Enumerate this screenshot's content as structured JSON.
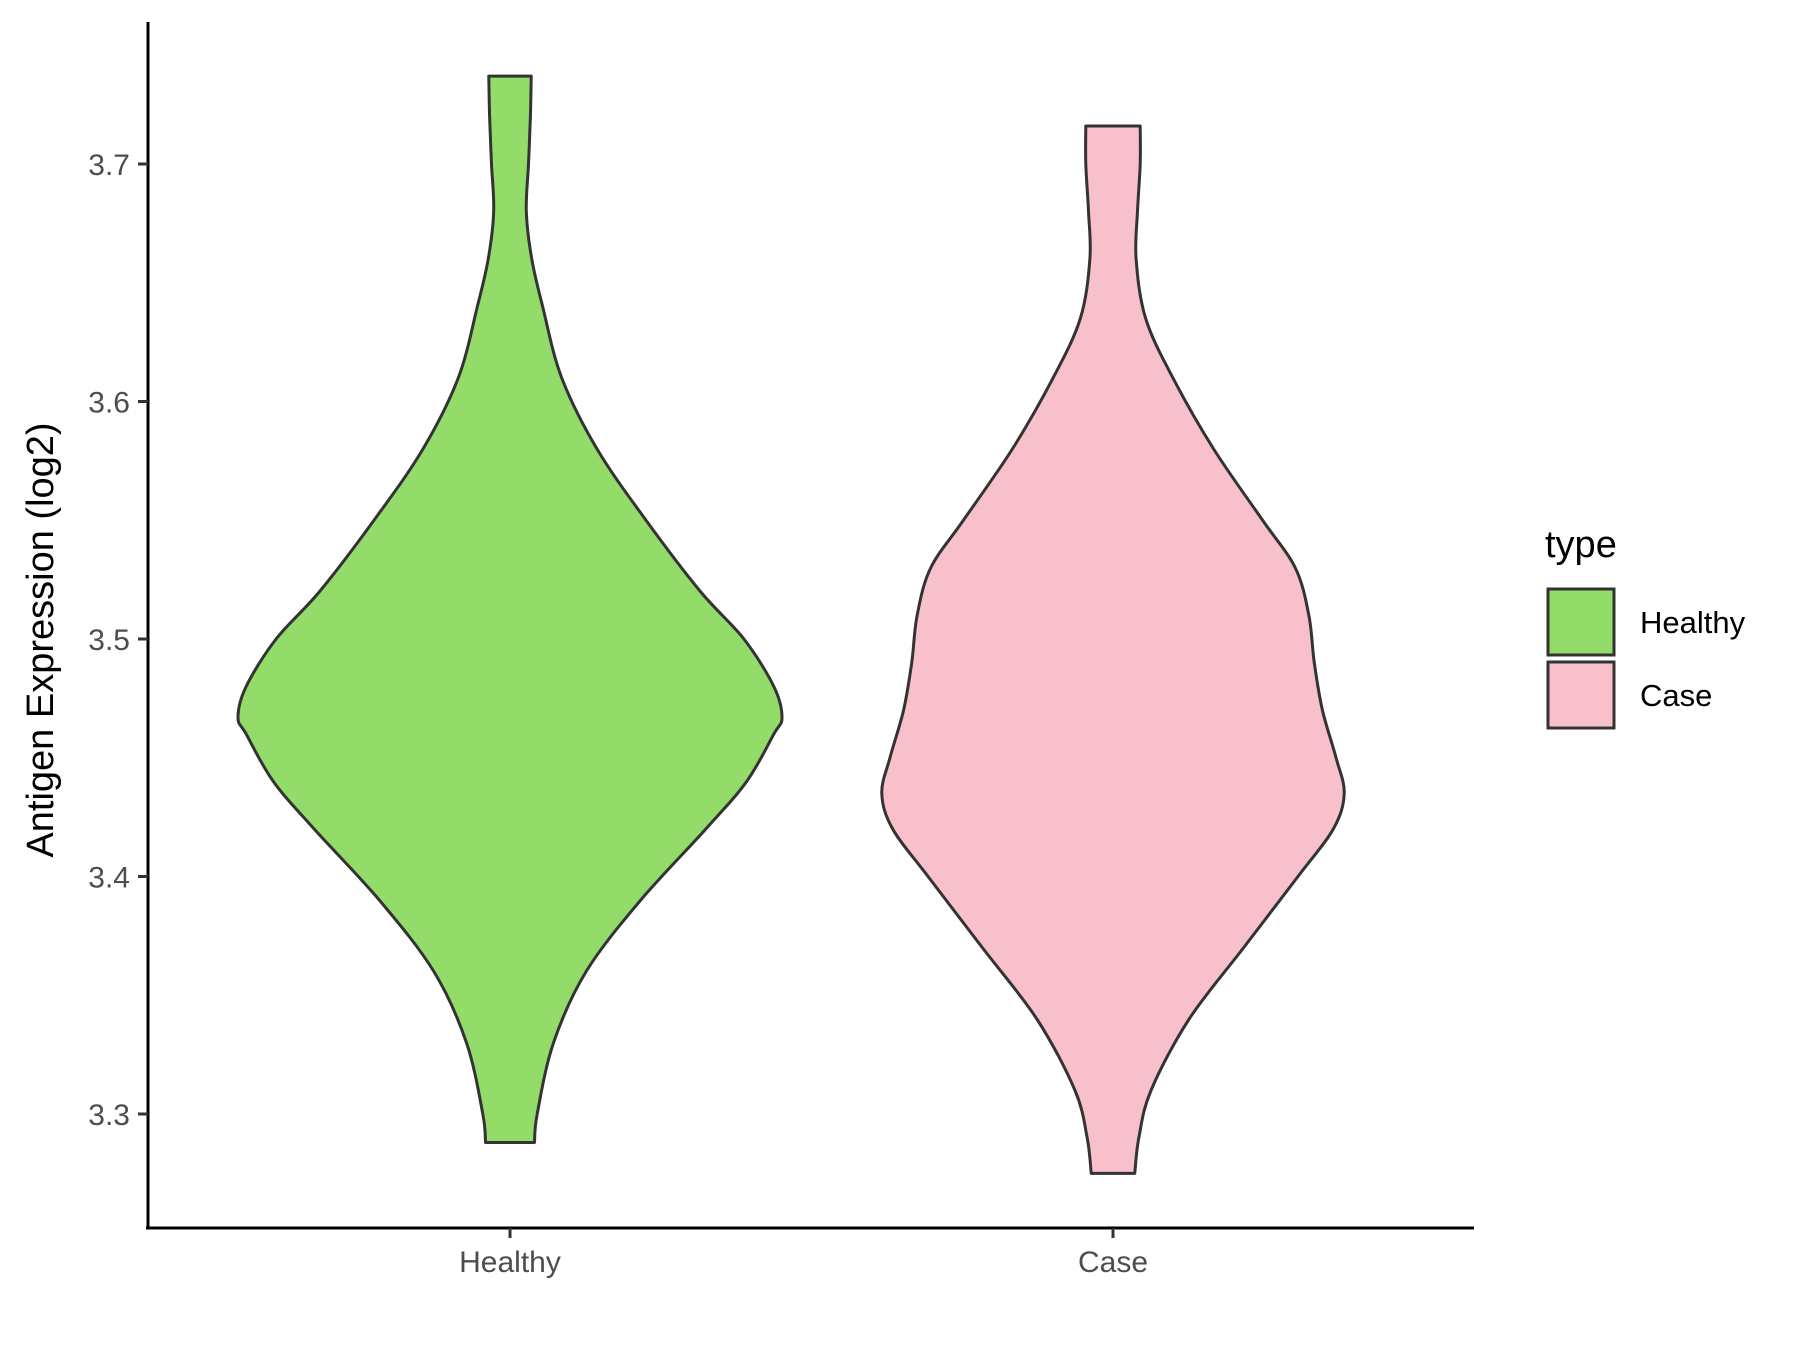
{
  "chart_data": {
    "type": "violin",
    "title": "",
    "xlabel": "",
    "ylabel": "Antigen Expression (log2)",
    "ylim": [
      3.25,
      3.76
    ],
    "yticks": [
      3.3,
      3.4,
      3.5,
      3.6,
      3.7
    ],
    "ytick_labels": [
      "3.3",
      "3.4",
      "3.5",
      "3.6",
      "3.7"
    ],
    "categories": [
      "Healthy",
      "Case"
    ],
    "grid": false,
    "legend": {
      "title": "type",
      "position": "right",
      "entries": [
        "Healthy",
        "Case"
      ]
    },
    "series": [
      {
        "name": "Healthy",
        "color": "#93DC6A",
        "y_min": 3.288,
        "y_max": 3.737,
        "density_profile": [
          [
            3.288,
            0.09
          ],
          [
            3.3,
            0.1
          ],
          [
            3.33,
            0.16
          ],
          [
            3.36,
            0.28
          ],
          [
            3.39,
            0.48
          ],
          [
            3.42,
            0.72
          ],
          [
            3.44,
            0.87
          ],
          [
            3.46,
            0.97
          ],
          [
            3.467,
            1.0
          ],
          [
            3.48,
            0.97
          ],
          [
            3.5,
            0.86
          ],
          [
            3.52,
            0.7
          ],
          [
            3.55,
            0.5
          ],
          [
            3.58,
            0.32
          ],
          [
            3.61,
            0.19
          ],
          [
            3.64,
            0.12
          ],
          [
            3.66,
            0.08
          ],
          [
            3.68,
            0.06
          ],
          [
            3.7,
            0.068
          ],
          [
            3.72,
            0.075
          ],
          [
            3.737,
            0.078
          ]
        ]
      },
      {
        "name": "Case",
        "color": "#F8C0CB",
        "y_min": 3.275,
        "y_max": 3.716,
        "density_profile": [
          [
            3.275,
            0.08
          ],
          [
            3.29,
            0.095
          ],
          [
            3.31,
            0.14
          ],
          [
            3.34,
            0.28
          ],
          [
            3.37,
            0.48
          ],
          [
            3.4,
            0.68
          ],
          [
            3.42,
            0.81
          ],
          [
            3.435,
            0.85
          ],
          [
            3.45,
            0.82
          ],
          [
            3.47,
            0.77
          ],
          [
            3.49,
            0.74
          ],
          [
            3.51,
            0.72
          ],
          [
            3.53,
            0.67
          ],
          [
            3.55,
            0.55
          ],
          [
            3.58,
            0.37
          ],
          [
            3.61,
            0.22
          ],
          [
            3.635,
            0.12
          ],
          [
            3.66,
            0.085
          ],
          [
            3.68,
            0.09
          ],
          [
            3.7,
            0.1
          ],
          [
            3.716,
            0.1
          ]
        ]
      }
    ]
  }
}
